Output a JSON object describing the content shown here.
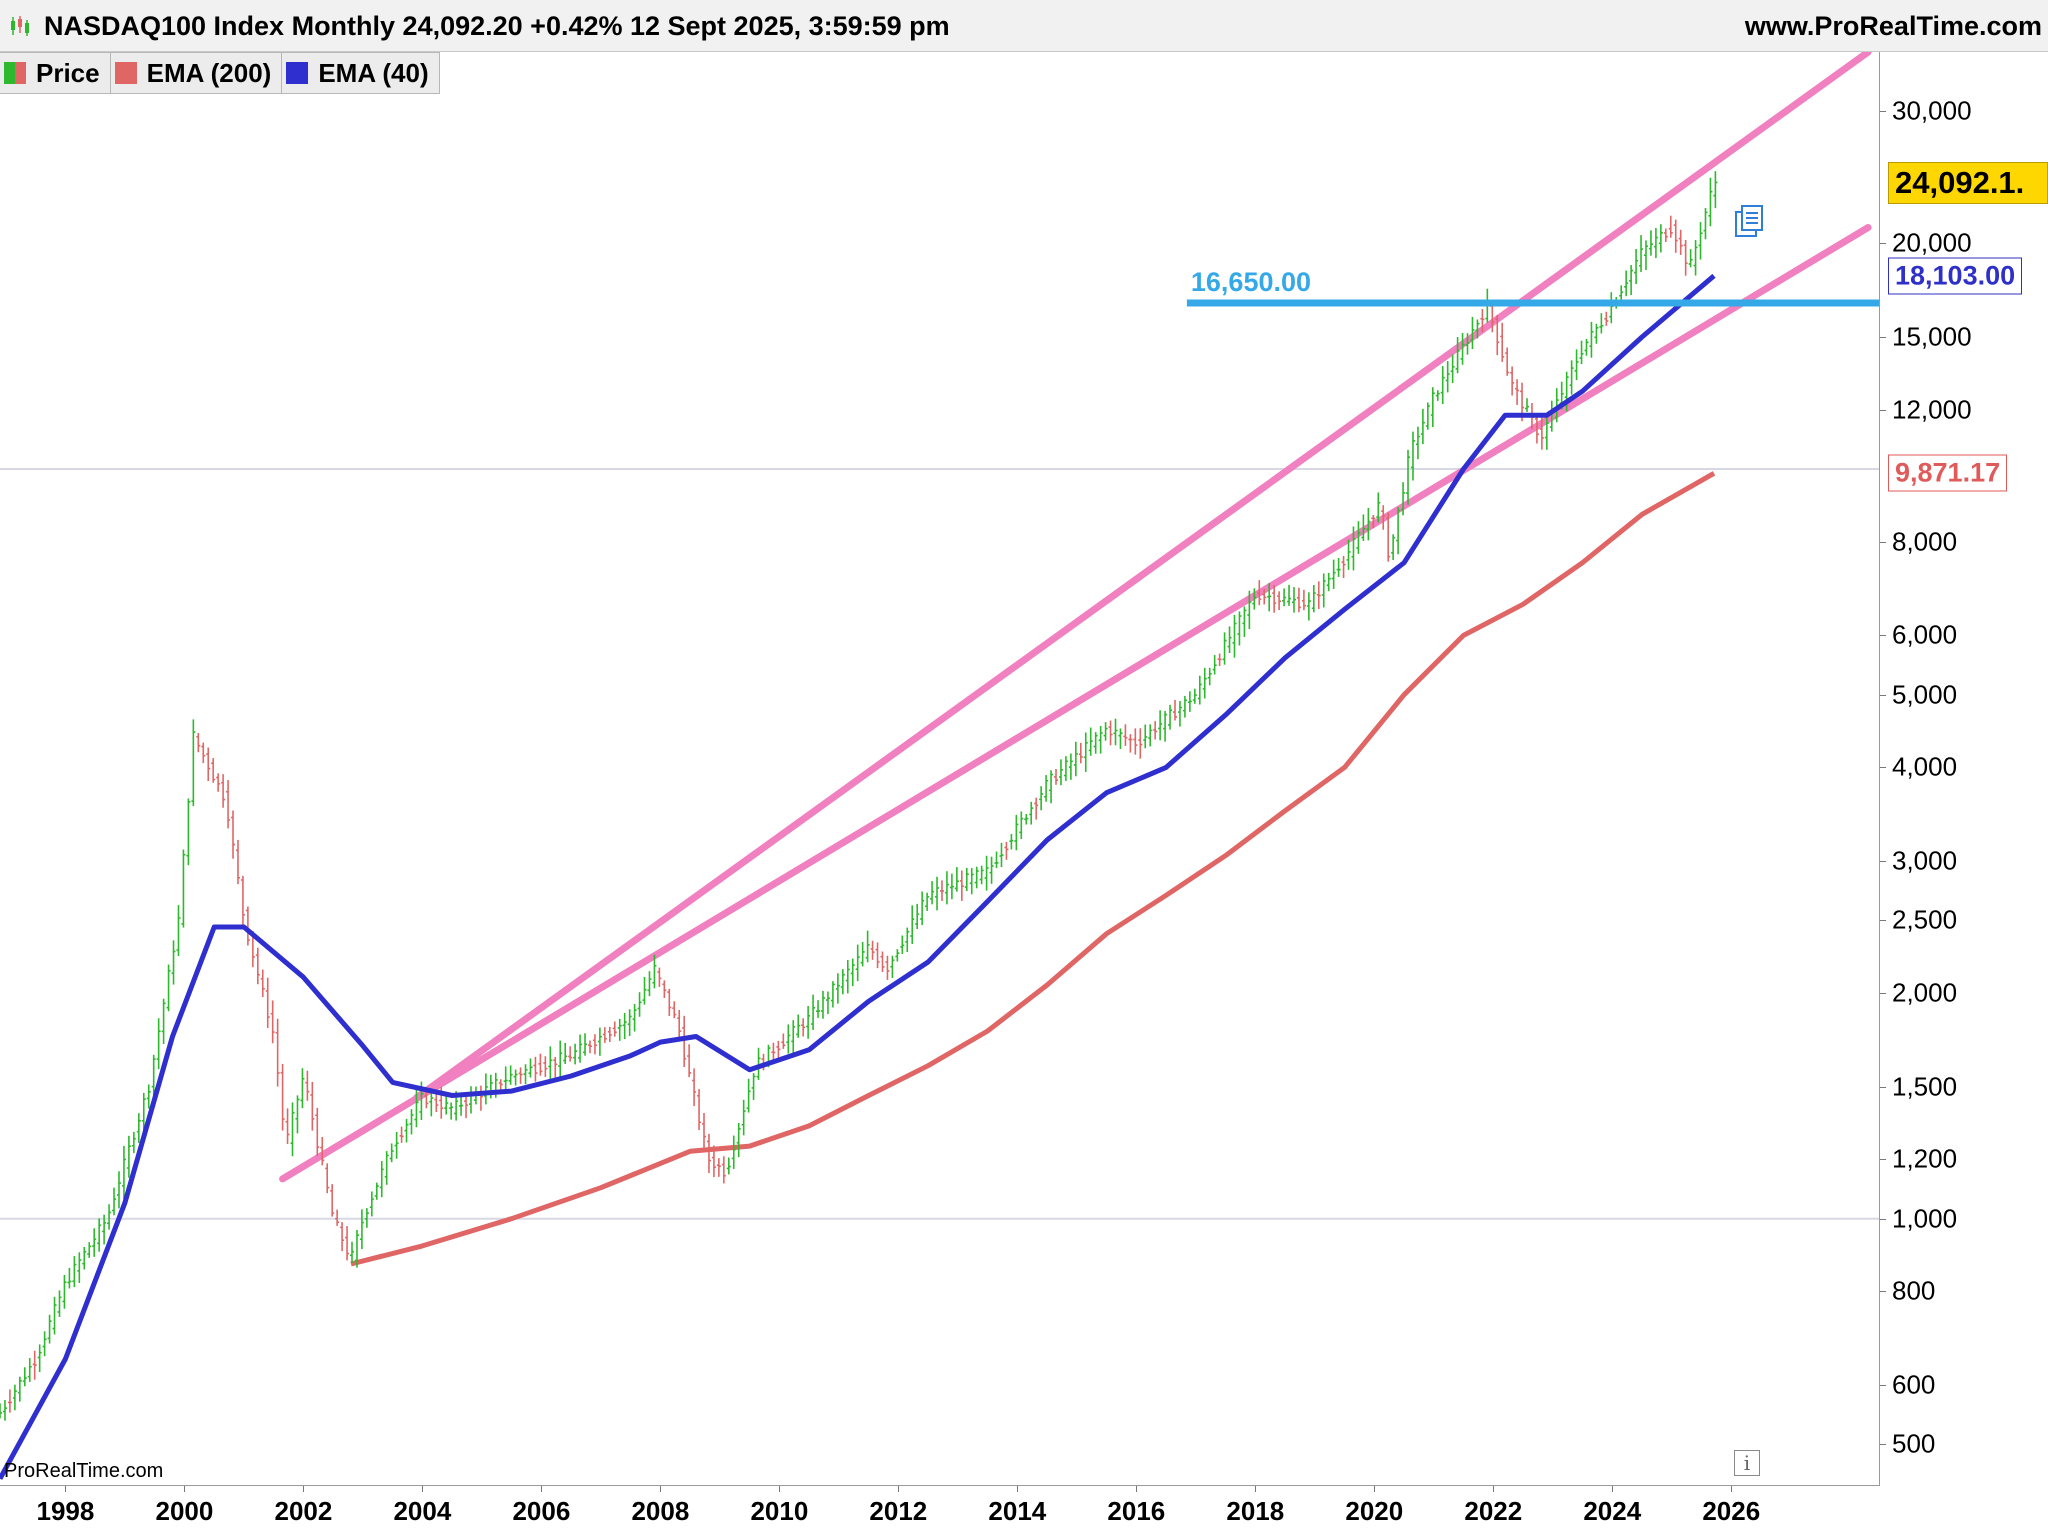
{
  "header": {
    "title": "NASDAQ100 Index Monthly 24,092.20 +0.42% 12 Sept 2025, 3:59:59 pm",
    "brand": "www.ProRealTime.com"
  },
  "legend": [
    {
      "label": "Price",
      "color": "#2db82d"
    },
    {
      "label": "EMA (200)",
      "color": "#e06666"
    },
    {
      "label": "EMA (40)",
      "color": "#2f2fd0"
    }
  ],
  "watermark": "ProRealTime.com",
  "info_icon": "i",
  "price_tags": {
    "last": "24,092.1.",
    "ema40": "18,103.00",
    "ema200": "9,871.17"
  },
  "level": {
    "label": "16,650.00",
    "value": 16650,
    "x_start": 2016.85,
    "color": "#35a9e8"
  },
  "chart_data": {
    "type": "candlestick",
    "y_scale": "log",
    "ylim": [
      440,
      36000
    ],
    "xlim": [
      1996.9,
      2028.5
    ],
    "y_ticks": [
      {
        "v": 30000,
        "label": "30,000"
      },
      {
        "v": 20000,
        "label": "20,000"
      },
      {
        "v": 15000,
        "label": "15,000"
      },
      {
        "v": 12000,
        "label": "12,000"
      },
      {
        "v": 8000,
        "label": "8,000"
      },
      {
        "v": 6000,
        "label": "6,000"
      },
      {
        "v": 5000,
        "label": "5,000"
      },
      {
        "v": 4000,
        "label": "4,000"
      },
      {
        "v": 3000,
        "label": "3,000"
      },
      {
        "v": 2500,
        "label": "2,500"
      },
      {
        "v": 2000,
        "label": "2,000"
      },
      {
        "v": 1500,
        "label": "1,500"
      },
      {
        "v": 1200,
        "label": "1,200"
      },
      {
        "v": 1000,
        "label": "1,000"
      },
      {
        "v": 800,
        "label": "800"
      },
      {
        "v": 600,
        "label": "600"
      },
      {
        "v": 500,
        "label": "500"
      }
    ],
    "x_ticks": [
      "1998",
      "2000",
      "2002",
      "2004",
      "2006",
      "2008",
      "2010",
      "2012",
      "2014",
      "2016",
      "2018",
      "2020",
      "2022",
      "2024",
      "2026"
    ],
    "reference_lines": [
      1000,
      10000
    ],
    "price_anchors": [
      [
        1996.9,
        550
      ],
      [
        1997.5,
        650
      ],
      [
        1998.0,
        820
      ],
      [
        1998.7,
        1000
      ],
      [
        1999.4,
        1500
      ],
      [
        1999.9,
        2500
      ],
      [
        2000.15,
        4400
      ],
      [
        2000.7,
        3600
      ],
      [
        2001.0,
        2500
      ],
      [
        2001.5,
        1750
      ],
      [
        2001.7,
        1250
      ],
      [
        2002.0,
        1550
      ],
      [
        2002.5,
        1000
      ],
      [
        2002.8,
        880
      ],
      [
        2003.0,
        1000
      ],
      [
        2003.5,
        1250
      ],
      [
        2004.0,
        1450
      ],
      [
        2004.5,
        1400
      ],
      [
        2005.5,
        1550
      ],
      [
        2006.5,
        1650
      ],
      [
        2007.5,
        1850
      ],
      [
        2007.9,
        2150
      ],
      [
        2008.3,
        1800
      ],
      [
        2008.8,
        1200
      ],
      [
        2009.1,
        1150
      ],
      [
        2009.6,
        1600
      ],
      [
        2010.5,
        1850
      ],
      [
        2011.5,
        2300
      ],
      [
        2011.8,
        2150
      ],
      [
        2012.5,
        2700
      ],
      [
        2013.5,
        2900
      ],
      [
        2014.5,
        3800
      ],
      [
        2015.5,
        4500
      ],
      [
        2016.0,
        4300
      ],
      [
        2017.0,
        5000
      ],
      [
        2018.0,
        6800
      ],
      [
        2018.9,
        6600
      ],
      [
        2019.5,
        7600
      ],
      [
        2020.1,
        9000
      ],
      [
        2020.25,
        7600
      ],
      [
        2020.6,
        10500
      ],
      [
        2021.0,
        12500
      ],
      [
        2021.9,
        16500
      ],
      [
        2022.3,
        13000
      ],
      [
        2022.8,
        11000
      ],
      [
        2023.5,
        14500
      ],
      [
        2023.9,
        16000
      ],
      [
        2024.5,
        19500
      ],
      [
        2025.0,
        21000
      ],
      [
        2025.3,
        18500
      ],
      [
        2025.71,
        24092
      ]
    ],
    "ema40": {
      "name": "EMA (40)",
      "color": "#2f2fd0",
      "points": [
        [
          1996.9,
          450
        ],
        [
          1998.0,
          650
        ],
        [
          1999.0,
          1050
        ],
        [
          1999.8,
          1750
        ],
        [
          2000.5,
          2450
        ],
        [
          2001.0,
          2450
        ],
        [
          2002.0,
          2100
        ],
        [
          2003.0,
          1700
        ],
        [
          2003.5,
          1520
        ],
        [
          2004.5,
          1460
        ],
        [
          2005.5,
          1480
        ],
        [
          2006.5,
          1550
        ],
        [
          2007.5,
          1650
        ],
        [
          2008.0,
          1720
        ],
        [
          2008.6,
          1750
        ],
        [
          2009.5,
          1580
        ],
        [
          2010.5,
          1680
        ],
        [
          2011.5,
          1950
        ],
        [
          2012.5,
          2200
        ],
        [
          2013.5,
          2650
        ],
        [
          2014.5,
          3200
        ],
        [
          2015.5,
          3700
        ],
        [
          2016.5,
          4000
        ],
        [
          2017.5,
          4700
        ],
        [
          2018.5,
          5600
        ],
        [
          2019.5,
          6500
        ],
        [
          2020.5,
          7500
        ],
        [
          2021.5,
          10000
        ],
        [
          2022.2,
          11800
        ],
        [
          2022.9,
          11800
        ],
        [
          2023.5,
          12700
        ],
        [
          2024.5,
          15000
        ],
        [
          2025.71,
          18103
        ]
      ]
    },
    "ema200": {
      "name": "EMA (200)",
      "color": "#e06666",
      "points": [
        [
          2002.8,
          870
        ],
        [
          2004.0,
          920
        ],
        [
          2005.5,
          1000
        ],
        [
          2007.0,
          1100
        ],
        [
          2008.5,
          1230
        ],
        [
          2009.5,
          1250
        ],
        [
          2010.5,
          1330
        ],
        [
          2011.5,
          1460
        ],
        [
          2012.5,
          1600
        ],
        [
          2013.5,
          1780
        ],
        [
          2014.5,
          2050
        ],
        [
          2015.5,
          2400
        ],
        [
          2016.5,
          2700
        ],
        [
          2017.5,
          3050
        ],
        [
          2018.5,
          3500
        ],
        [
          2019.5,
          4000
        ],
        [
          2020.5,
          5000
        ],
        [
          2021.5,
          6000
        ],
        [
          2022.5,
          6600
        ],
        [
          2023.5,
          7500
        ],
        [
          2024.5,
          8700
        ],
        [
          2025.71,
          9871
        ]
      ]
    },
    "trend_channel": {
      "color": "#f080c0",
      "upper": [
        [
          2003.9,
          1450
        ],
        [
          2028.3,
          36000
        ]
      ],
      "lower": [
        [
          2001.65,
          1130
        ],
        [
          2028.3,
          21000
        ]
      ]
    }
  },
  "colors": {
    "up": "#2db82d",
    "down": "#e06666"
  }
}
